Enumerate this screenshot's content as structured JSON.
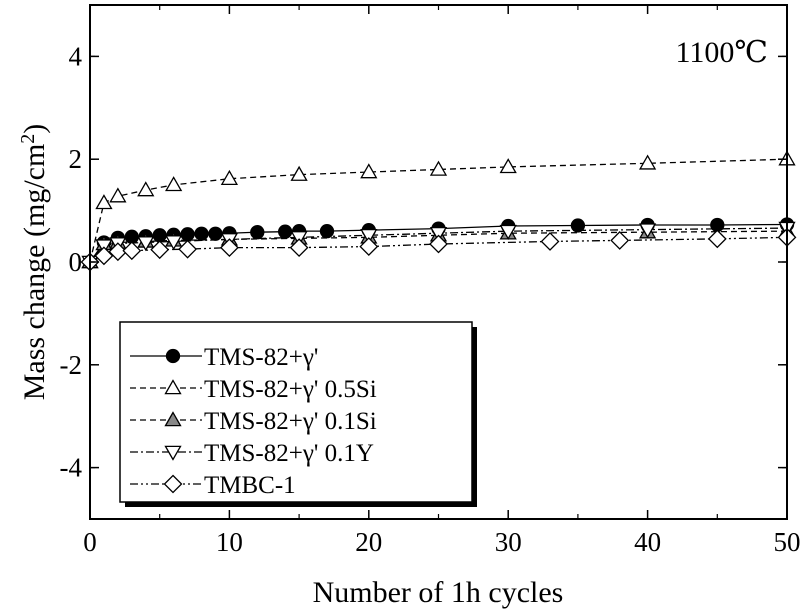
{
  "chart_data": {
    "type": "line",
    "title": "",
    "annotation": "1100℃",
    "xlabel": "Number of 1h cycles",
    "ylabel": "Mass change (mg/cm",
    "ylabel_sup": "2",
    "ylabel_close": ")",
    "xlim": [
      0,
      50
    ],
    "ylim": [
      -5,
      5
    ],
    "x_ticks": [
      "0",
      "10",
      "20",
      "30",
      "40",
      "50"
    ],
    "y_ticks": [
      "-4",
      "-2",
      "0",
      "2",
      "4"
    ],
    "grid": false,
    "legend_position": "lower-left",
    "series": [
      {
        "name": "TMS-82+γ'",
        "marker": "circle-filled",
        "line": "solid",
        "x": [
          0,
          1,
          2,
          3,
          4,
          5,
          6,
          7,
          8,
          9,
          10,
          12,
          14,
          15,
          17,
          20,
          25,
          30,
          35,
          40,
          45,
          50
        ],
        "y": [
          0,
          0.38,
          0.47,
          0.49,
          0.5,
          0.52,
          0.53,
          0.54,
          0.55,
          0.55,
          0.56,
          0.58,
          0.59,
          0.6,
          0.6,
          0.62,
          0.65,
          0.7,
          0.71,
          0.72,
          0.72,
          0.73
        ]
      },
      {
        "name": "TMS-82+γ' 0.5Si",
        "marker": "triangle-up-open",
        "line": "dashed",
        "x": [
          0,
          1,
          2,
          4,
          6,
          10,
          15,
          20,
          25,
          30,
          40,
          50
        ],
        "y": [
          0,
          1.15,
          1.28,
          1.4,
          1.5,
          1.62,
          1.7,
          1.75,
          1.8,
          1.85,
          1.92,
          2.0
        ]
      },
      {
        "name": "TMS-82+γ' 0.1Si",
        "marker": "triangle-up-gray",
        "line": "dashed",
        "x": [
          0,
          1,
          2,
          4,
          6,
          10,
          15,
          20,
          25,
          30,
          40,
          50
        ],
        "y": [
          0,
          0.35,
          0.38,
          0.4,
          0.42,
          0.44,
          0.46,
          0.48,
          0.52,
          0.56,
          0.58,
          0.6
        ]
      },
      {
        "name": "TMS-82+γ' 0.1Y",
        "marker": "triangle-down-open",
        "line": "dashdot",
        "x": [
          0,
          1,
          2,
          4,
          6,
          10,
          15,
          20,
          25,
          30,
          40,
          50
        ],
        "y": [
          0,
          0.32,
          0.36,
          0.38,
          0.4,
          0.44,
          0.48,
          0.52,
          0.56,
          0.6,
          0.63,
          0.66
        ]
      },
      {
        "name": "TMBC-1",
        "marker": "diamond-open",
        "line": "dashdotdot",
        "x": [
          0,
          1,
          2,
          3,
          5,
          7,
          10,
          15,
          20,
          25,
          33,
          38,
          45,
          50
        ],
        "y": [
          0,
          0.12,
          0.2,
          0.22,
          0.24,
          0.25,
          0.28,
          0.28,
          0.3,
          0.35,
          0.4,
          0.42,
          0.45,
          0.48
        ]
      }
    ]
  }
}
